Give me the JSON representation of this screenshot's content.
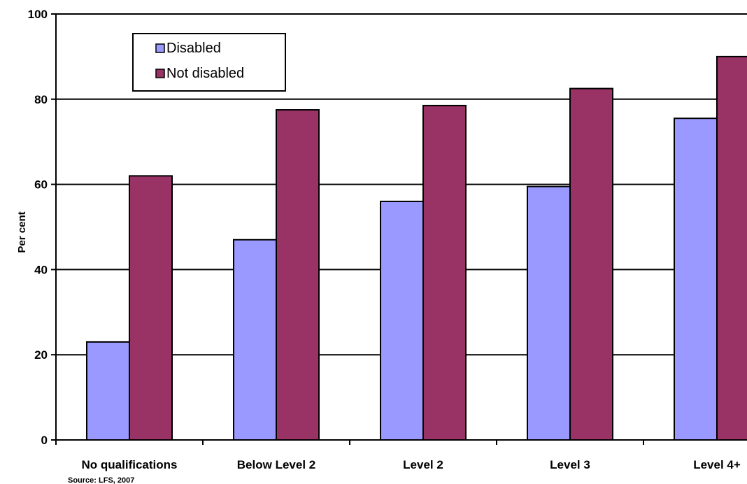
{
  "chart_data": {
    "type": "bar",
    "ylabel": "Per cent",
    "ylim": [
      0,
      100
    ],
    "yticks": [
      0,
      20,
      40,
      60,
      80,
      100
    ],
    "categories": [
      "No qualifications",
      "Below Level 2",
      "Level 2",
      "Level 3",
      "Level 4+"
    ],
    "series": [
      {
        "name": "Disabled",
        "color": "#9999FF",
        "values": [
          23,
          47,
          56,
          59.5,
          75.5
        ]
      },
      {
        "name": "Not disabled",
        "color": "#993366",
        "values": [
          62,
          77.5,
          78.5,
          82.5,
          90
        ]
      }
    ],
    "grid": true,
    "legend_position": "top-left"
  },
  "source_note": "Source: LFS, 2007"
}
